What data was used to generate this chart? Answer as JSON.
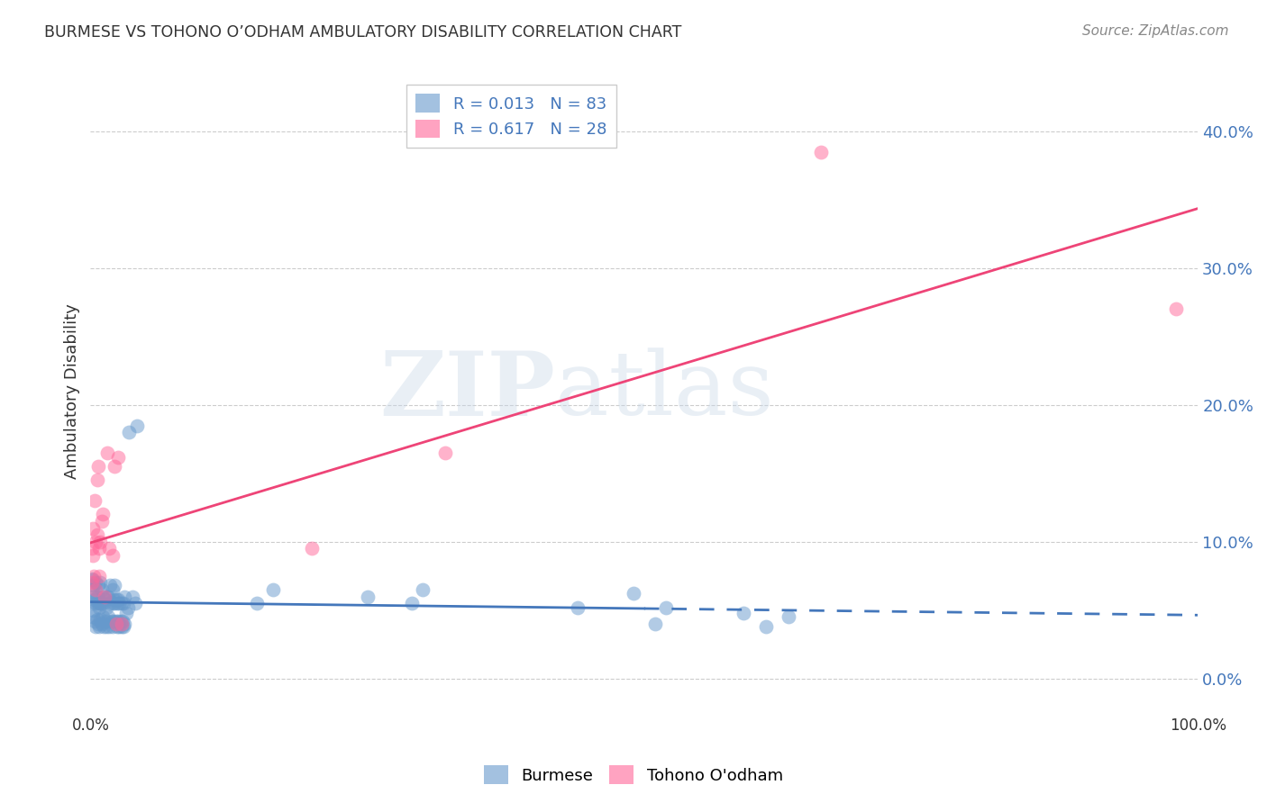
{
  "title": "BURMESE VS TOHONO O’ODHAM AMBULATORY DISABILITY CORRELATION CHART",
  "source": "Source: ZipAtlas.com",
  "ylabel": "Ambulatory Disability",
  "watermark": "ZIPatlas",
  "burmese_R": 0.013,
  "burmese_N": 83,
  "tohono_R": 0.617,
  "tohono_N": 28,
  "burmese_color": "#6699CC",
  "tohono_color": "#FF6699",
  "burmese_line_color": "#4477BB",
  "tohono_line_color": "#EE4477",
  "background_color": "#FFFFFF",
  "grid_color": "#CCCCCC",
  "ytick_color": "#4477BB",
  "title_color": "#333333",
  "burmese_x": [
    0.001,
    0.001,
    0.001,
    0.002,
    0.002,
    0.002,
    0.003,
    0.003,
    0.004,
    0.004,
    0.005,
    0.005,
    0.005,
    0.006,
    0.006,
    0.007,
    0.007,
    0.007,
    0.008,
    0.008,
    0.009,
    0.009,
    0.009,
    0.01,
    0.01,
    0.01,
    0.011,
    0.011,
    0.012,
    0.012,
    0.013,
    0.013,
    0.014,
    0.014,
    0.015,
    0.015,
    0.016,
    0.016,
    0.017,
    0.018,
    0.018,
    0.019,
    0.02,
    0.02,
    0.02,
    0.021,
    0.021,
    0.022,
    0.022,
    0.023,
    0.023,
    0.024,
    0.024,
    0.025,
    0.025,
    0.026,
    0.026,
    0.027,
    0.028,
    0.028,
    0.029,
    0.03,
    0.03,
    0.031,
    0.031,
    0.032,
    0.034,
    0.035,
    0.038,
    0.04,
    0.042,
    0.15,
    0.165,
    0.25,
    0.29,
    0.3,
    0.44,
    0.49,
    0.51,
    0.52,
    0.59,
    0.61,
    0.63
  ],
  "burmese_y": [
    0.055,
    0.065,
    0.073,
    0.045,
    0.06,
    0.072,
    0.05,
    0.068,
    0.042,
    0.058,
    0.038,
    0.055,
    0.07,
    0.043,
    0.06,
    0.04,
    0.055,
    0.068,
    0.038,
    0.052,
    0.043,
    0.055,
    0.07,
    0.04,
    0.055,
    0.065,
    0.045,
    0.06,
    0.038,
    0.055,
    0.042,
    0.058,
    0.038,
    0.052,
    0.042,
    0.06,
    0.045,
    0.06,
    0.038,
    0.055,
    0.068,
    0.042,
    0.038,
    0.055,
    0.065,
    0.042,
    0.058,
    0.055,
    0.068,
    0.042,
    0.058,
    0.038,
    0.055,
    0.042,
    0.058,
    0.038,
    0.055,
    0.042,
    0.038,
    0.055,
    0.042,
    0.038,
    0.055,
    0.04,
    0.06,
    0.048,
    0.052,
    0.18,
    0.06,
    0.055,
    0.185,
    0.055,
    0.065,
    0.06,
    0.055,
    0.065,
    0.052,
    0.062,
    0.04,
    0.052,
    0.048,
    0.038,
    0.045
  ],
  "tohono_x": [
    0.001,
    0.001,
    0.002,
    0.002,
    0.003,
    0.004,
    0.005,
    0.005,
    0.006,
    0.006,
    0.007,
    0.008,
    0.008,
    0.009,
    0.01,
    0.011,
    0.013,
    0.015,
    0.017,
    0.02,
    0.022,
    0.023,
    0.025,
    0.028,
    0.2,
    0.32,
    0.66,
    0.98
  ],
  "tohono_y": [
    0.095,
    0.07,
    0.11,
    0.09,
    0.075,
    0.13,
    0.065,
    0.1,
    0.105,
    0.145,
    0.155,
    0.095,
    0.075,
    0.1,
    0.115,
    0.12,
    0.06,
    0.165,
    0.095,
    0.09,
    0.155,
    0.04,
    0.162,
    0.04,
    0.095,
    0.165,
    0.385,
    0.27
  ],
  "xlim": [
    0.0,
    1.0
  ],
  "ylim": [
    -0.025,
    0.445
  ],
  "yticks": [
    0.0,
    0.1,
    0.2,
    0.3,
    0.4
  ],
  "ytick_labels": [
    "0.0%",
    "10.0%",
    "20.0%",
    "30.0%",
    "40.0%"
  ],
  "burmese_line_x0": 0.0,
  "burmese_line_x1": 0.5,
  "burmese_line_x_dash_start": 0.5,
  "burmese_line_x_dash_end": 1.0
}
